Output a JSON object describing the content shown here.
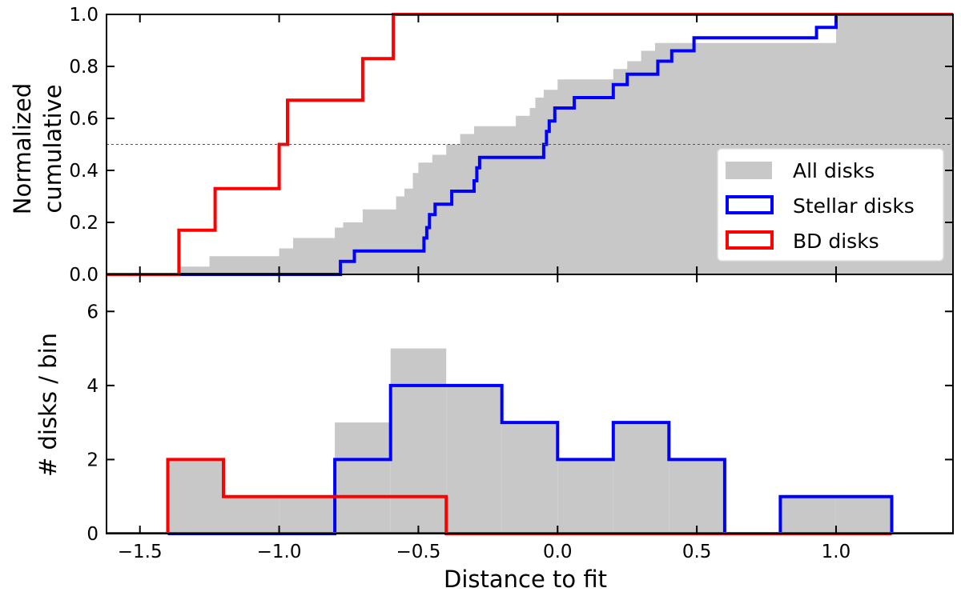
{
  "chart_data": [
    {
      "type": "step",
      "panel": "top",
      "ylabel": [
        "Normalized",
        "cumulative"
      ],
      "xlim": [
        -1.62,
        1.42
      ],
      "ylim": [
        0,
        1
      ],
      "yticks": [
        0.0,
        0.2,
        0.4,
        0.6,
        0.8,
        1.0
      ],
      "ytick_labels": [
        "0.0",
        "0.2",
        "0.4",
        "0.6",
        "0.8",
        "1.0"
      ],
      "reference_line": {
        "y": 0.5,
        "style": "dashed"
      },
      "legend": {
        "placement": "right",
        "entries": [
          {
            "label": "All disks",
            "color": "#c8c8c8",
            "style": "filled"
          },
          {
            "label": "Stellar disks",
            "color": "#0000ff",
            "style": "outline"
          },
          {
            "label": "BD disks",
            "color": "#ff0000",
            "style": "outline"
          }
        ]
      },
      "series": [
        {
          "name": "All disks",
          "style": "filled",
          "color": "#c8c8c8",
          "x": [
            -1.62,
            -1.36,
            -1.25,
            -1.0,
            -0.95,
            -0.8,
            -0.77,
            -0.7,
            -0.58,
            -0.55,
            -0.52,
            -0.5,
            -0.45,
            -0.4,
            -0.35,
            -0.3,
            -0.28,
            -0.26,
            -0.24,
            -0.2,
            -0.15,
            -0.1,
            -0.08,
            -0.05,
            0.0,
            0.05,
            0.1,
            0.2,
            0.25,
            0.3,
            0.35,
            0.4,
            0.5,
            0.6,
            0.8,
            1.0,
            1.42
          ],
          "y": [
            0.0,
            0.03,
            0.07,
            0.1,
            0.14,
            0.18,
            0.2,
            0.25,
            0.3,
            0.33,
            0.39,
            0.43,
            0.46,
            0.5,
            0.54,
            0.57,
            0.57,
            0.57,
            0.57,
            0.57,
            0.61,
            0.64,
            0.68,
            0.71,
            0.75,
            0.75,
            0.75,
            0.79,
            0.82,
            0.86,
            0.89,
            0.89,
            0.89,
            0.89,
            0.89,
            1.0,
            1.0
          ]
        },
        {
          "name": "Stellar disks",
          "style": "outline",
          "color": "#0000ff",
          "x": [
            -1.62,
            -0.78,
            -0.77,
            -0.73,
            -0.48,
            -0.47,
            -0.46,
            -0.44,
            -0.43,
            -0.38,
            -0.3,
            -0.29,
            -0.28,
            -0.27,
            -0.05,
            -0.04,
            -0.03,
            -0.01,
            0.06,
            0.2,
            0.25,
            0.36,
            0.37,
            0.38,
            0.41,
            0.42,
            0.49,
            0.51,
            0.52,
            0.57,
            0.93,
            1.0,
            1.42
          ],
          "y": [
            0.0,
            0.05,
            0.05,
            0.09,
            0.14,
            0.18,
            0.23,
            0.27,
            0.27,
            0.32,
            0.36,
            0.41,
            0.45,
            0.45,
            0.5,
            0.55,
            0.59,
            0.64,
            0.68,
            0.73,
            0.77,
            0.82,
            0.82,
            0.82,
            0.86,
            0.86,
            0.91,
            0.91,
            0.91,
            0.91,
            0.95,
            1.0,
            1.0
          ]
        },
        {
          "name": "BD disks",
          "style": "outline",
          "color": "#ff0000",
          "x": [
            -1.62,
            -1.36,
            -1.23,
            -1.0,
            -0.97,
            -0.7,
            -0.59,
            1.42
          ],
          "y": [
            0.0,
            0.17,
            0.33,
            0.5,
            0.67,
            0.83,
            1.0,
            1.0
          ]
        }
      ]
    },
    {
      "type": "histogram",
      "panel": "bottom",
      "xlabel": "Distance to fit",
      "ylabel": "# disks / bin",
      "xlim": [
        -1.62,
        1.42
      ],
      "ylim": [
        0,
        7
      ],
      "xticks": [
        -1.5,
        -1.0,
        -0.5,
        0.0,
        0.5,
        1.0
      ],
      "xtick_labels": [
        "−1.5",
        "−1.0",
        "−0.5",
        "0.0",
        "0.5",
        "1.0"
      ],
      "yticks": [
        0,
        2,
        4,
        6
      ],
      "ytick_labels": [
        "0",
        "2",
        "4",
        "6"
      ],
      "bin_edges": [
        -1.4,
        -1.2,
        -1.0,
        -0.8,
        -0.6,
        -0.4,
        -0.2,
        0.0,
        0.2,
        0.4,
        0.6,
        0.8,
        1.0,
        1.2
      ],
      "series": [
        {
          "name": "All disks",
          "style": "filled",
          "color": "#c8c8c8",
          "counts": [
            2,
            1,
            1,
            3,
            5,
            4,
            3,
            2,
            3,
            2,
            0,
            1,
            1
          ]
        },
        {
          "name": "Stellar disks",
          "style": "outline",
          "color": "#0000ff",
          "counts": [
            0,
            0,
            0,
            2,
            4,
            4,
            3,
            2,
            3,
            2,
            0,
            1,
            1
          ]
        },
        {
          "name": "BD disks",
          "style": "outline",
          "color": "#ff0000",
          "counts": [
            2,
            1,
            1,
            1,
            1,
            0,
            0,
            0,
            0,
            0,
            0,
            0,
            0
          ]
        }
      ]
    }
  ]
}
